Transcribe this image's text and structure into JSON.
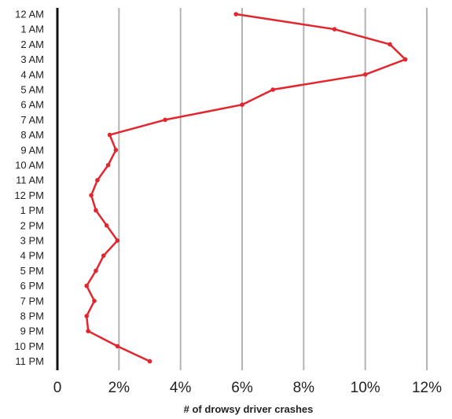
{
  "chart_data": {
    "type": "line",
    "orientation": "horizontal-value",
    "title": "",
    "xlabel": "# of drowsy driver crashes",
    "ylabel": "",
    "xlim": [
      0,
      12
    ],
    "x_ticks": [
      {
        "value": 0,
        "label": "0"
      },
      {
        "value": 2,
        "label": "2%"
      },
      {
        "value": 4,
        "label": "4%"
      },
      {
        "value": 6,
        "label": "6%"
      },
      {
        "value": 8,
        "label": "8%"
      },
      {
        "value": 10,
        "label": "10%"
      },
      {
        "value": 12,
        "label": "12%"
      }
    ],
    "grid": "vertical",
    "legend": "none",
    "colors": {
      "line": "#e3262e",
      "grid": "#b3b3b3",
      "axis": "#111111"
    },
    "categories": [
      "12 AM",
      "1 AM",
      "2 AM",
      "3 AM",
      "4 AM",
      "5 AM",
      "6 AM",
      "7 AM",
      "8 AM",
      "9 AM",
      "10 AM",
      "11 AM",
      "12 PM",
      "1 PM",
      "2 PM",
      "3 PM",
      "4 PM",
      "5 PM",
      "6 PM",
      "7 PM",
      "8 PM",
      "9 PM",
      "10 PM",
      "11 PM"
    ],
    "series": [
      {
        "values": [
          5.8,
          9.0,
          10.8,
          11.3,
          10.0,
          7.0,
          6.0,
          3.5,
          1.7,
          1.9,
          1.65,
          1.3,
          1.1,
          1.25,
          1.6,
          1.95,
          1.5,
          1.25,
          0.95,
          1.2,
          0.95,
          1.0,
          1.95,
          3.0
        ]
      }
    ]
  }
}
